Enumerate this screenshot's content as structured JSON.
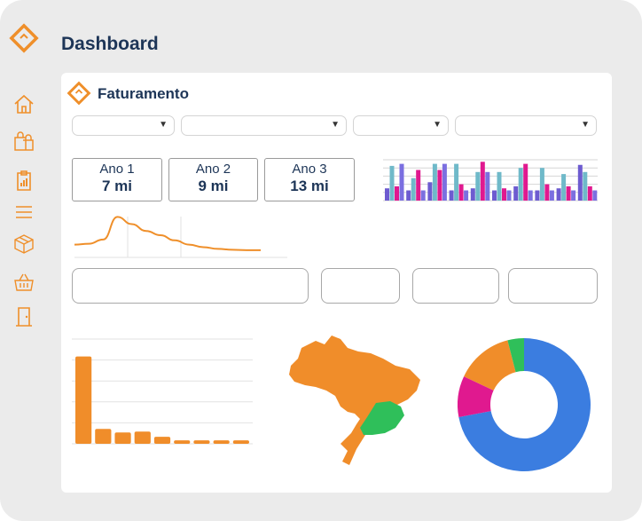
{
  "page": {
    "title": "Dashboard"
  },
  "card": {
    "title": "Faturamento"
  },
  "icons": {
    "logo": "diamond-logo-icon",
    "sidebar": [
      "home-icon",
      "shopping-bags-icon",
      "clipboard-chart-icon",
      "menu-lines-icon",
      "box-icon",
      "basket-icon",
      "door-exit-icon"
    ]
  },
  "filters": [
    {
      "value": ""
    },
    {
      "value": ""
    },
    {
      "value": ""
    },
    {
      "value": ""
    }
  ],
  "kpis": [
    {
      "label": "Ano 1",
      "value": "7 mi"
    },
    {
      "label": "Ano 2",
      "value": "9 mi"
    },
    {
      "label": "Ano 3",
      "value": "13 mi"
    }
  ],
  "colors": {
    "accent": "#ef8f2a",
    "title": "#1d3557",
    "blue": "#3b7de0",
    "teal": "#6fb9c9",
    "purple": "#6d5bd0",
    "magenta": "#e0198f",
    "green": "#2fbf5a",
    "orange": "#f08d2a"
  },
  "chart_data": [
    {
      "type": "bar",
      "name": "mini-grouped-bars",
      "categories": [
        "1",
        "2",
        "3",
        "4",
        "5",
        "6",
        "7",
        "8",
        "9",
        "10"
      ],
      "series": [
        {
          "color": "#6d5bd0",
          "values": [
            1.2,
            1.0,
            1.8,
            1.0,
            1.2,
            1.0,
            1.4,
            1.0,
            1.2,
            3.5
          ]
        },
        {
          "color": "#6fb9c9",
          "values": [
            3.4,
            2.2,
            3.6,
            3.6,
            2.8,
            2.8,
            3.2,
            3.2,
            2.6,
            2.8
          ]
        },
        {
          "color": "#e0198f",
          "values": [
            1.4,
            3.0,
            3.0,
            1.6,
            3.8,
            1.2,
            3.6,
            1.6,
            1.4,
            1.4
          ]
        },
        {
          "color": "#7b6fe0",
          "values": [
            3.6,
            1.0,
            3.6,
            1.0,
            2.8,
            1.0,
            1.0,
            1.0,
            1.0,
            1.0
          ]
        }
      ],
      "ylim": [
        0,
        4
      ],
      "grid": true
    },
    {
      "type": "line",
      "name": "mini-line",
      "values": [
        0.3,
        0.32,
        0.42,
        0.95,
        0.78,
        0.62,
        0.52,
        0.4,
        0.3,
        0.24,
        0.2,
        0.18,
        0.17,
        0.17
      ],
      "ylim": [
        0,
        1
      ],
      "color": "#ef8f2a"
    },
    {
      "type": "bar",
      "name": "bottom-bars",
      "categories": [
        "1",
        "2",
        "3",
        "4",
        "5",
        "6",
        "7",
        "8",
        "9"
      ],
      "values": [
        100,
        17,
        13,
        14,
        8,
        4,
        4,
        4,
        4
      ],
      "ylim": [
        0,
        120
      ],
      "color": "#f08d2a",
      "grid": true
    },
    {
      "type": "pie",
      "name": "donut",
      "slices": [
        {
          "value": 72,
          "color": "#3b7de0"
        },
        {
          "value": 10,
          "color": "#e0198f"
        },
        {
          "value": 14,
          "color": "#f08d2a"
        },
        {
          "value": 4,
          "color": "#2fbf5a"
        }
      ]
    }
  ]
}
